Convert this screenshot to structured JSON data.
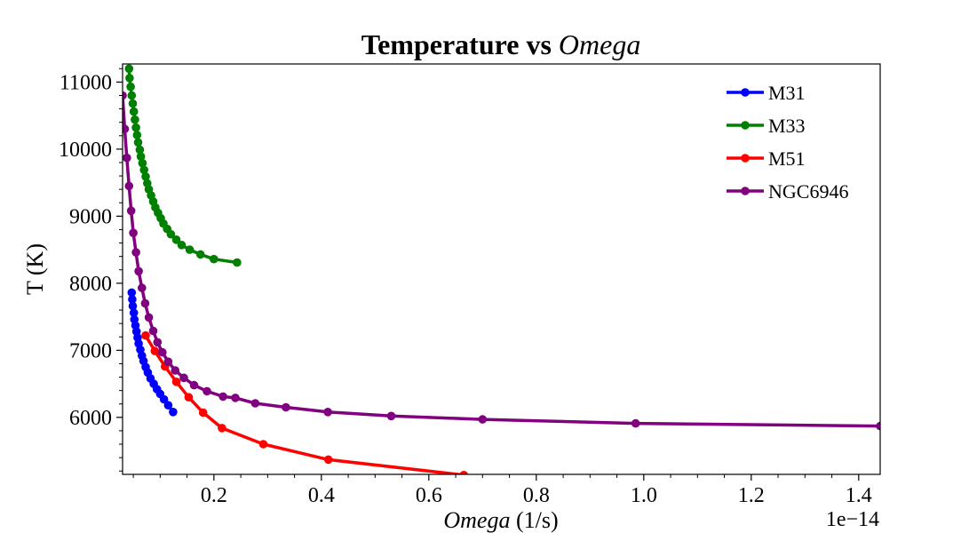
{
  "chart_data": {
    "type": "line",
    "title": "Temperature vs ",
    "title_italic": "Omega",
    "xlabel_italic": "Omega",
    "xlabel_rest": " (1/s)",
    "ylabel": "T (K)",
    "x_offset_label": "1e−14",
    "xlim": [
      0.03,
      1.44
    ],
    "ylim": [
      5150,
      11270
    ],
    "xticks": [
      0.2,
      0.4,
      0.6,
      0.8,
      1.0,
      1.2,
      1.4
    ],
    "xtick_labels": [
      "0.2",
      "0.4",
      "0.6",
      "0.8",
      "1.0",
      "1.2",
      "1.4"
    ],
    "yticks": [
      6000,
      7000,
      8000,
      9000,
      10000,
      11000
    ],
    "ytick_labels": [
      "6000",
      "7000",
      "8000",
      "9000",
      "10000",
      "11000"
    ],
    "grid": false,
    "legend_position": "top-right",
    "series": [
      {
        "name": "M31",
        "color": "#0000ff",
        "x": [
          0.047,
          0.048,
          0.049,
          0.051,
          0.052,
          0.054,
          0.056,
          0.058,
          0.06,
          0.063,
          0.066,
          0.069,
          0.073,
          0.077,
          0.082,
          0.088,
          0.094,
          0.1,
          0.107,
          0.115,
          0.124
        ],
        "y": [
          7860,
          7760,
          7660,
          7560,
          7460,
          7370,
          7280,
          7190,
          7100,
          7010,
          6920,
          6840,
          6750,
          6670,
          6580,
          6500,
          6420,
          6350,
          6270,
          6180,
          6080
        ]
      },
      {
        "name": "M33",
        "color": "#008000",
        "x": [
          0.042,
          0.043,
          0.045,
          0.047,
          0.049,
          0.051,
          0.053,
          0.055,
          0.057,
          0.059,
          0.062,
          0.064,
          0.067,
          0.07,
          0.073,
          0.076,
          0.079,
          0.083,
          0.087,
          0.091,
          0.096,
          0.101,
          0.106,
          0.113,
          0.12,
          0.13,
          0.14,
          0.155,
          0.175,
          0.2,
          0.243
        ],
        "y": [
          11200,
          11060,
          10930,
          10800,
          10680,
          10560,
          10440,
          10320,
          10210,
          10100,
          9990,
          9890,
          9790,
          9690,
          9590,
          9490,
          9400,
          9310,
          9220,
          9130,
          9050,
          8970,
          8890,
          8810,
          8730,
          8650,
          8570,
          8500,
          8430,
          8360,
          8310
        ]
      },
      {
        "name": "M51",
        "color": "#ff0000",
        "x": [
          0.073,
          0.09,
          0.109,
          0.13,
          0.153,
          0.18,
          0.215,
          0.292,
          0.413,
          0.665
        ],
        "y": [
          7220,
          6990,
          6760,
          6530,
          6300,
          6070,
          5840,
          5600,
          5370,
          5140
        ]
      },
      {
        "name": "NGC6946",
        "color": "#800080",
        "x": [
          0.03,
          0.034,
          0.038,
          0.042,
          0.046,
          0.05,
          0.055,
          0.06,
          0.066,
          0.072,
          0.079,
          0.087,
          0.095,
          0.104,
          0.115,
          0.128,
          0.144,
          0.163,
          0.187,
          0.217,
          0.24,
          0.277,
          0.334,
          0.412,
          0.53,
          0.7,
          0.985,
          1.44
        ],
        "y": [
          10800,
          10300,
          9870,
          9450,
          9080,
          8750,
          8460,
          8180,
          7930,
          7700,
          7490,
          7290,
          7120,
          6970,
          6830,
          6700,
          6590,
          6480,
          6390,
          6310,
          6290,
          6210,
          6150,
          6080,
          6020,
          5970,
          5910,
          5870
        ]
      }
    ]
  }
}
